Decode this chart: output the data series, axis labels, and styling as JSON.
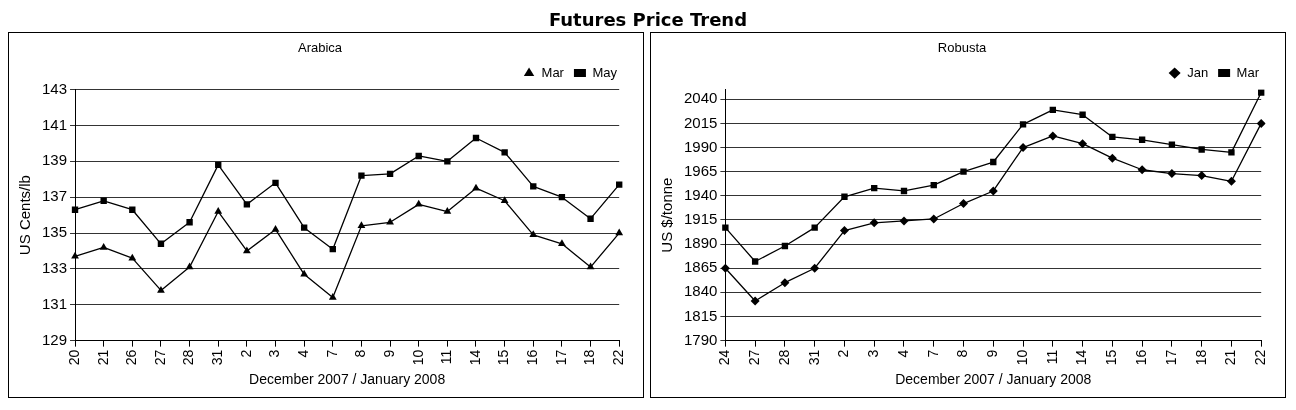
{
  "chart_data": [
    {
      "type": "line",
      "title": "Arabica",
      "annotations": [
        "Futures Price Trend"
      ],
      "xlabel": "December 2007 / January 2008",
      "ylabel": "US Cents/lb",
      "categories": [
        "20",
        "21",
        "26",
        "27",
        "28",
        "31",
        "2",
        "3",
        "4",
        "7",
        "8",
        "9",
        "10",
        "11",
        "14",
        "15",
        "16",
        "17",
        "18",
        "22"
      ],
      "series": [
        {
          "name": "Mar",
          "color": "#000000",
          "marker": "triangle",
          "values": [
            133.7,
            134.2,
            133.6,
            131.8,
            133.1,
            136.2,
            134.0,
            135.2,
            132.7,
            131.4,
            135.4,
            135.6,
            136.6,
            136.2,
            137.5,
            136.8,
            134.9,
            134.4,
            133.1,
            135.0
          ]
        },
        {
          "name": "May",
          "color": "#000000",
          "marker": "square",
          "values": [
            136.3,
            136.8,
            136.3,
            134.4,
            135.6,
            138.8,
            136.6,
            137.8,
            135.3,
            134.1,
            138.2,
            138.3,
            139.3,
            139.0,
            140.3,
            139.5,
            137.6,
            137.0,
            135.8,
            137.7
          ]
        }
      ],
      "ylim": [
        129,
        143
      ],
      "yticks": [
        129,
        131,
        133,
        135,
        137,
        139,
        141,
        143
      ],
      "grid": "y",
      "legend": "top right",
      "line_style": "solid"
    },
    {
      "type": "line",
      "title": "Robusta",
      "xlabel": "December 2007 / January 2008",
      "ylabel": "US $/tonne",
      "categories": [
        "24",
        "27",
        "28",
        "31",
        "2",
        "3",
        "4",
        "7",
        "8",
        "9",
        "10",
        "11",
        "14",
        "15",
        "16",
        "17",
        "18",
        "21",
        "22"
      ],
      "series": [
        {
          "name": "Jan",
          "color": "#000000",
          "marker": "diamond",
          "values": [
            1865,
            1831,
            1850,
            1865,
            1904,
            1912,
            1914,
            1916,
            1932,
            1945,
            1990,
            2002,
            1994,
            1979,
            1967,
            1963,
            1961,
            1955,
            2015
          ]
        },
        {
          "name": "Mar",
          "color": "#000000",
          "marker": "square",
          "values": [
            1907,
            1872,
            1888,
            1907,
            1939,
            1948,
            1945,
            1951,
            1965,
            1975,
            2014,
            2029,
            2024,
            2001,
            1998,
            1993,
            1988,
            1985,
            2047
          ]
        }
      ],
      "ylim": [
        1790,
        2050
      ],
      "yticks": [
        1790,
        1815,
        1840,
        1865,
        1890,
        1915,
        1940,
        1965,
        1990,
        2015,
        2040
      ],
      "grid": "y",
      "legend": "top right",
      "line_style": "solid"
    }
  ]
}
